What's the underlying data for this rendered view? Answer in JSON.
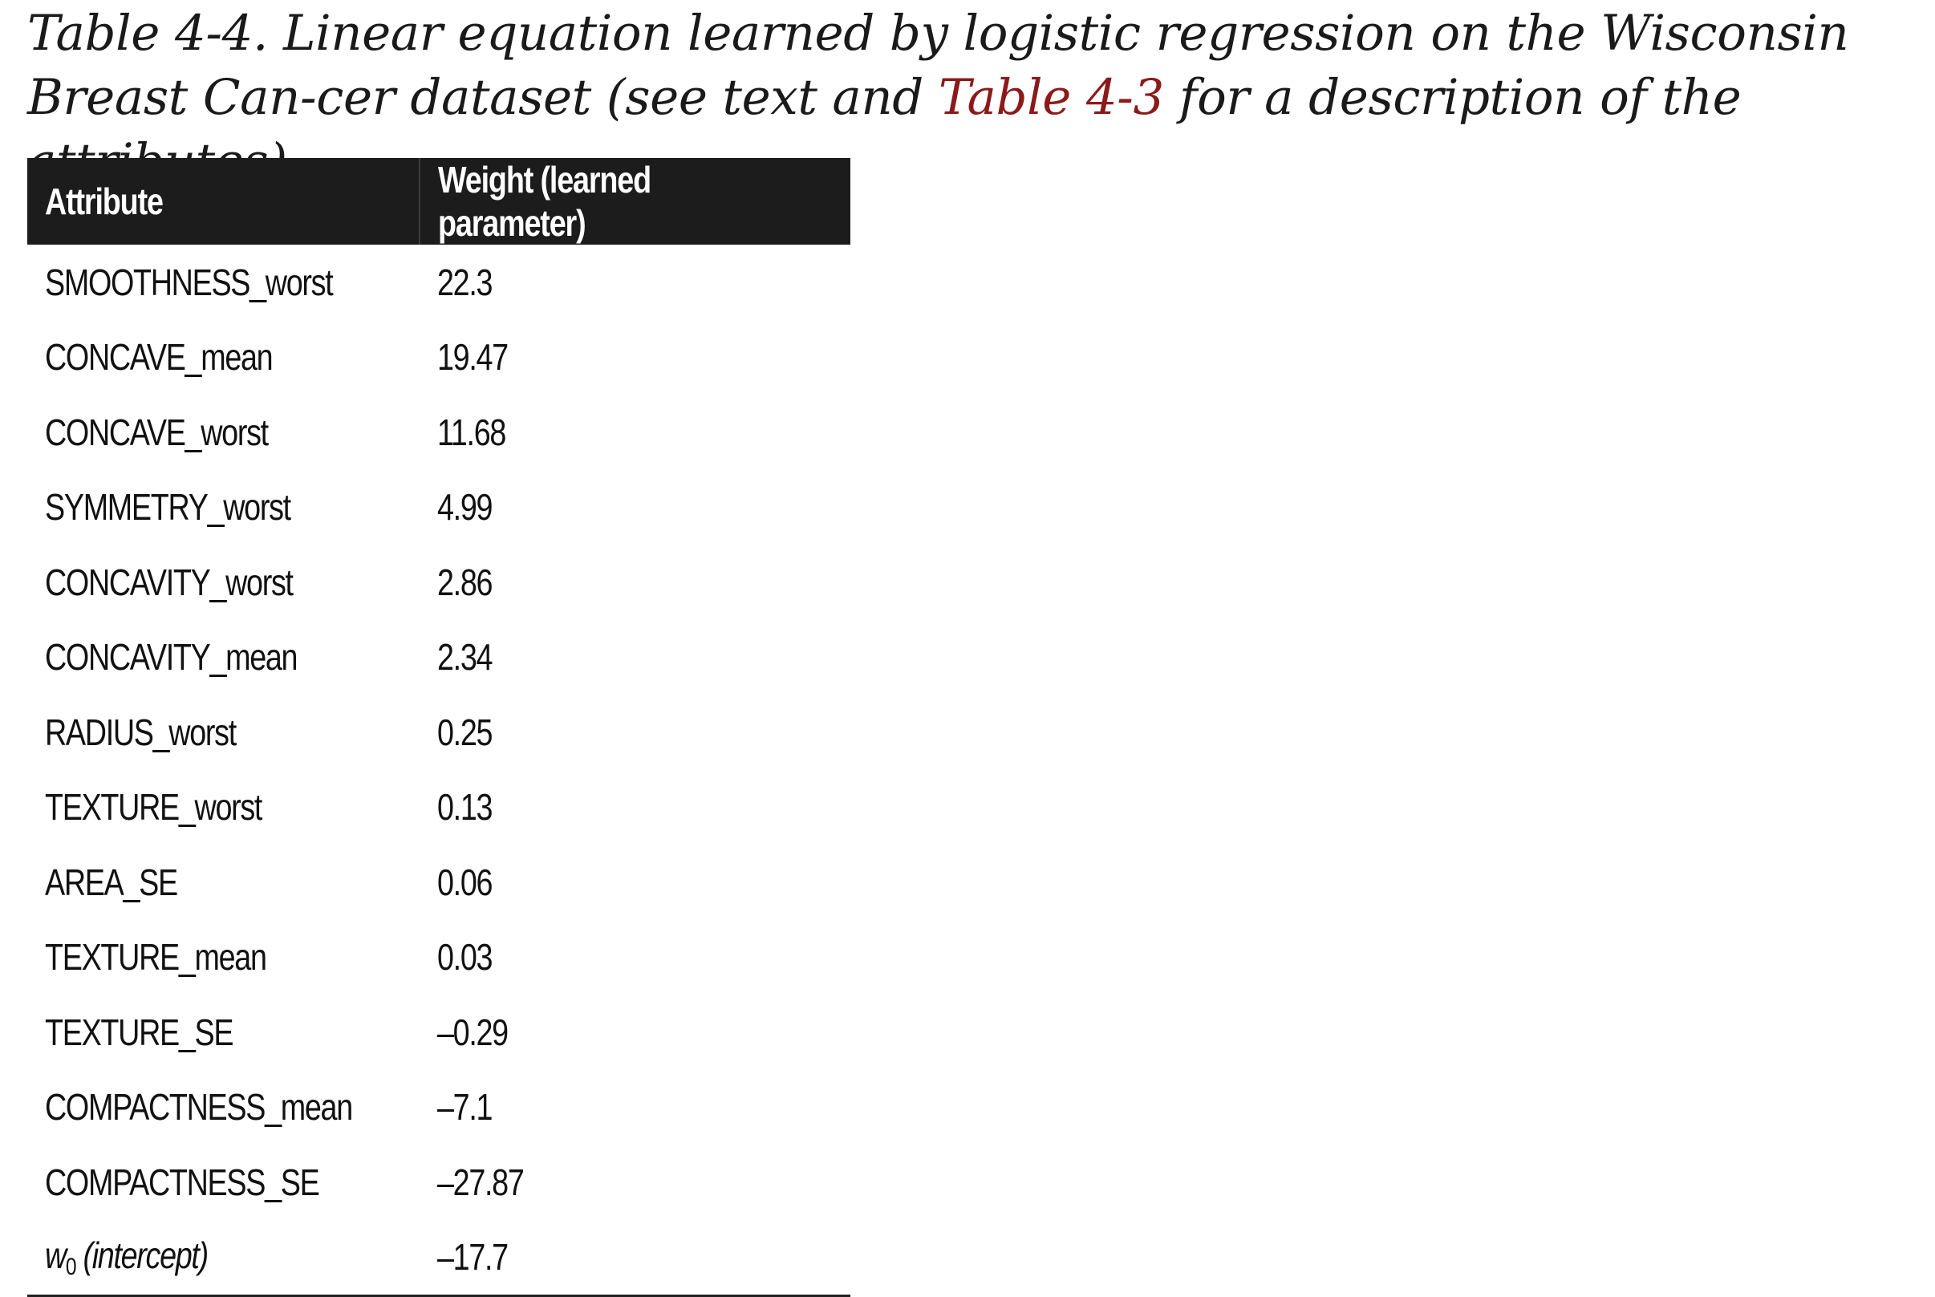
{
  "caption": {
    "prefix": "Table 4-4. Linear equation learned by logistic regression on the Wisconsin Breast Can-cer dataset (see text and ",
    "xref": "Table 4-3",
    "suffix": " for a description of the attributes)."
  },
  "table": {
    "headers": {
      "attribute": "Attribute",
      "weight": "Weight (learned parameter)"
    },
    "rows": [
      {
        "attribute": "SMOOTHNESS_worst",
        "weight": "22.3"
      },
      {
        "attribute": "CONCAVE_mean",
        "weight": "19.47"
      },
      {
        "attribute": "CONCAVE_worst",
        "weight": "11.68"
      },
      {
        "attribute": "SYMMETRY_worst",
        "weight": "4.99"
      },
      {
        "attribute": "CONCAVITY_worst",
        "weight": "2.86"
      },
      {
        "attribute": "CONCAVITY_mean",
        "weight": "2.34"
      },
      {
        "attribute": "RADIUS_worst",
        "weight": "0.25"
      },
      {
        "attribute": "TEXTURE_worst",
        "weight": "0.13"
      },
      {
        "attribute": "AREA_SE",
        "weight": "0.06"
      },
      {
        "attribute": "TEXTURE_mean",
        "weight": "0.03"
      },
      {
        "attribute": "TEXTURE_SE",
        "weight": "–0.29"
      },
      {
        "attribute": "COMPACTNESS_mean",
        "weight": "–7.1"
      },
      {
        "attribute": "COMPACTNESS_SE",
        "weight": "–27.87"
      }
    ],
    "intercept": {
      "symbol": "w",
      "subscript": "0",
      "label": " (intercept)",
      "weight": "–17.7"
    }
  }
}
